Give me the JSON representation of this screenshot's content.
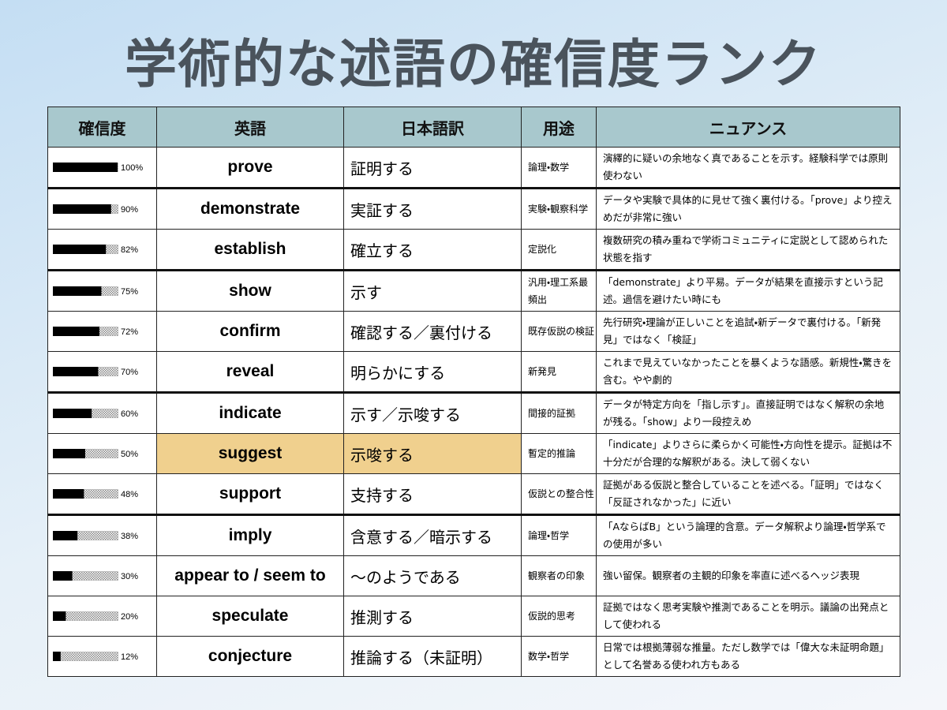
{
  "title": "学術的な述語の確信度ランク",
  "table": {
    "headers": [
      "確信度",
      "英語",
      "日本語訳",
      "用途",
      "ニュアンス"
    ],
    "highlighted_row": 7,
    "rows": [
      {
        "confidence": 100,
        "confidence_label": "100%",
        "english": "prove",
        "japanese": "証明する",
        "use": "論理・数学",
        "nuance": "演繹的に疑いの余地なく真であることを示す。経験科学では原則使わない"
      },
      {
        "confidence": 90,
        "confidence_label": "90%",
        "english": "demonstrate",
        "japanese": "実証する",
        "use": "実験・観察科学",
        "nuance": "データや実験で具体的に見せて強く裏付ける。「prove」より控えめだが非常に強い"
      },
      {
        "confidence": 82,
        "confidence_label": "82%",
        "english": "establish",
        "japanese": "確立する",
        "use": "定説化",
        "nuance": "複数研究の積み重ねで学術コミュニティに定説として認められた状態を指す"
      },
      {
        "confidence": 75,
        "confidence_label": "75%",
        "english": "show",
        "japanese": "示す",
        "use": "汎用・理工系最頻出",
        "nuance": "「demonstrate」より平易。データが結果を直接示すという記述。過信を避けたい時にも"
      },
      {
        "confidence": 72,
        "confidence_label": "72%",
        "english": "confirm",
        "japanese": "確認する／裏付ける",
        "use": "既存仮説の検証",
        "nuance": "先行研究・理論が正しいことを追試・新データで裏付ける。「新発見」ではなく「検証」"
      },
      {
        "confidence": 70,
        "confidence_label": "70%",
        "english": "reveal",
        "japanese": "明らかにする",
        "use": "新発見",
        "nuance": "これまで見えていなかったことを暴くような語感。新規性・驚きを含む。やや劇的"
      },
      {
        "confidence": 60,
        "confidence_label": "60%",
        "english": "indicate",
        "japanese": "示す／示唆する",
        "use": "間接的証拠",
        "nuance": "データが特定方向を「指し示す」。直接証明ではなく解釈の余地が残る。「show」より一段控えめ"
      },
      {
        "confidence": 50,
        "confidence_label": "50%",
        "english": "suggest",
        "japanese": "示唆する",
        "use": "暫定的推論",
        "nuance": "「indicate」よりさらに柔らかく可能性・方向性を提示。証拠は不十分だが合理的な解釈がある。決して弱くない"
      },
      {
        "confidence": 48,
        "confidence_label": "48%",
        "english": "support",
        "japanese": "支持する",
        "use": "仮説との整合性",
        "nuance": "証拠がある仮説と整合していることを述べる。「証明」ではなく「反証されなかった」に近い"
      },
      {
        "confidence": 38,
        "confidence_label": "38%",
        "english": "imply",
        "japanese": "含意する／暗示する",
        "use": "論理・哲学",
        "nuance": "「AならばB」という論理的含意。データ解釈より論理・哲学系での使用が多い"
      },
      {
        "confidence": 30,
        "confidence_label": "30%",
        "english": "appear to / seem to",
        "japanese": "〜のようである",
        "use": "観察者の印象",
        "nuance": "強い留保。観察者の主観的印象を率直に述べるヘッジ表現"
      },
      {
        "confidence": 20,
        "confidence_label": "20%",
        "english": "speculate",
        "japanese": "推測する",
        "use": "仮説的思考",
        "nuance": "証拠ではなく思考実験や推測であることを明示。議論の出発点として使われる"
      },
      {
        "confidence": 12,
        "confidence_label": "12%",
        "english": "conjecture",
        "japanese": "推論する（未証明）",
        "use": "数学・哲学",
        "nuance": "日常では根拠薄弱な推量。ただし数学では「偉大な未証明命題」として名誉ある使われ方もある"
      }
    ]
  }
}
